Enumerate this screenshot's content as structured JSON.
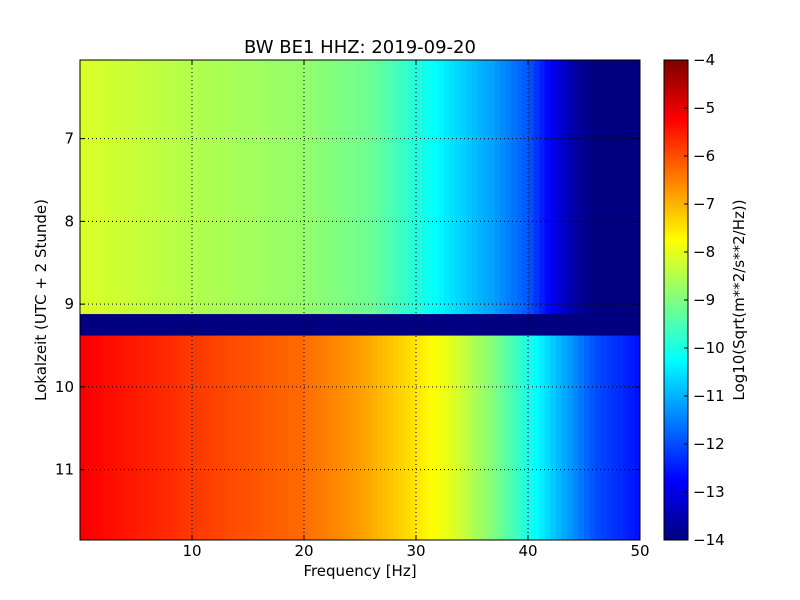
{
  "chart_data": {
    "type": "heatmap",
    "title": "BW BE1 HHZ: 2019-09-20",
    "xlabel": "Frequency [Hz]",
    "ylabel": "Lokalzeit (UTC + 2 Stunde)",
    "xlim": [
      0,
      50
    ],
    "ylim": [
      11.85,
      6.05
    ],
    "y_axis_inverted": true,
    "x_ticks": [
      10,
      20,
      30,
      40,
      50
    ],
    "y_ticks": [
      7,
      8,
      9,
      10,
      11
    ],
    "grid": true,
    "grid_style": "dotted",
    "colormap": "jet",
    "colorbar": {
      "label": "Log10(Sqrt(m**2/s**2/Hz))",
      "range": [
        -14,
        -4
      ],
      "ticks": [
        -4,
        -5,
        -6,
        -7,
        -8,
        -9,
        -10,
        -11,
        -12,
        -13,
        -14
      ]
    },
    "regions": [
      {
        "from_hour": 6.05,
        "to_hour": 9.12,
        "profile": [
          [
            0,
            -8.1
          ],
          [
            5,
            -8.3
          ],
          [
            10,
            -8.5
          ],
          [
            20,
            -8.8
          ],
          [
            26,
            -9.2
          ],
          [
            30,
            -9.9
          ],
          [
            33,
            -10.5
          ],
          [
            37,
            -11.2
          ],
          [
            40,
            -11.9
          ],
          [
            42,
            -12.8
          ],
          [
            44,
            -13.6
          ],
          [
            46,
            -14
          ],
          [
            50,
            -14
          ]
        ]
      },
      {
        "from_hour": 9.12,
        "to_hour": 9.38,
        "profile": [
          [
            0,
            -14
          ],
          [
            50,
            -14
          ]
        ]
      },
      {
        "from_hour": 9.38,
        "to_hour": 11.85,
        "profile": [
          [
            0,
            -5.2
          ],
          [
            5,
            -5.5
          ],
          [
            10,
            -5.8
          ],
          [
            20,
            -6.3
          ],
          [
            25,
            -6.8
          ],
          [
            30,
            -7.5
          ],
          [
            33,
            -8.0
          ],
          [
            37,
            -9.0
          ],
          [
            40,
            -10.0
          ],
          [
            43,
            -11.0
          ],
          [
            46,
            -12.0
          ],
          [
            50,
            -12.6
          ]
        ]
      }
    ]
  }
}
